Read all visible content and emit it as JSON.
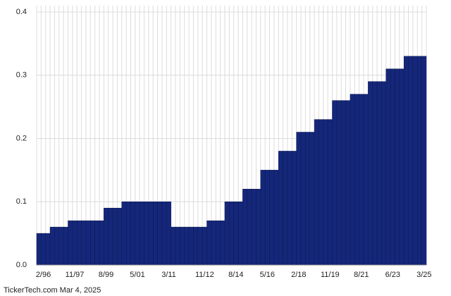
{
  "chart_data": {
    "type": "bar",
    "categories": [
      null,
      "2/96",
      null,
      null,
      null,
      null,
      null,
      null,
      "11/97",
      null,
      null,
      null,
      null,
      null,
      null,
      "8/99",
      null,
      null,
      null,
      null,
      null,
      null,
      "5/01",
      null,
      null,
      null,
      null,
      null,
      null,
      "3/11",
      null,
      null,
      null,
      null,
      null,
      null,
      null,
      "11/12",
      null,
      null,
      null,
      null,
      null,
      null,
      "8/14",
      null,
      null,
      null,
      null,
      null,
      null,
      "5/16",
      null,
      null,
      null,
      null,
      null,
      null,
      "2/18",
      null,
      null,
      null,
      null,
      null,
      null,
      "11/19",
      null,
      null,
      null,
      null,
      null,
      null,
      "8/21",
      null,
      null,
      null,
      null,
      null,
      null,
      "6/23",
      null,
      null,
      null,
      null,
      null,
      null,
      "3/25"
    ],
    "values": [
      0.05,
      0.05,
      0.05,
      0.06,
      0.06,
      0.06,
      0.06,
      0.07,
      0.07,
      0.07,
      0.07,
      0.07,
      0.07,
      0.07,
      0.07,
      0.09,
      0.09,
      0.09,
      0.09,
      0.1,
      0.1,
      0.1,
      0.1,
      0.1,
      0.1,
      0.1,
      0.1,
      0.1,
      0.1,
      0.1,
      0.06,
      0.06,
      0.06,
      0.06,
      0.06,
      0.06,
      0.06,
      0.06,
      0.07,
      0.07,
      0.07,
      0.07,
      0.1,
      0.1,
      0.1,
      0.1,
      0.12,
      0.12,
      0.12,
      0.12,
      0.15,
      0.15,
      0.15,
      0.15,
      0.18,
      0.18,
      0.18,
      0.18,
      0.21,
      0.21,
      0.21,
      0.21,
      0.23,
      0.23,
      0.23,
      0.23,
      0.26,
      0.26,
      0.26,
      0.26,
      0.27,
      0.27,
      0.27,
      0.27,
      0.29,
      0.29,
      0.29,
      0.29,
      0.31,
      0.31,
      0.31,
      0.31,
      0.33,
      0.33,
      0.33,
      0.33,
      0.33
    ],
    "color": "#15277a",
    "ylim": [
      0,
      0.41
    ],
    "yticks": [
      {
        "value": 0,
        "label": "0.0"
      },
      0.1,
      0.2,
      0.3,
      0.4
    ],
    "grid": true,
    "footer": "TickerTech.com Mar 4, 2025"
  }
}
